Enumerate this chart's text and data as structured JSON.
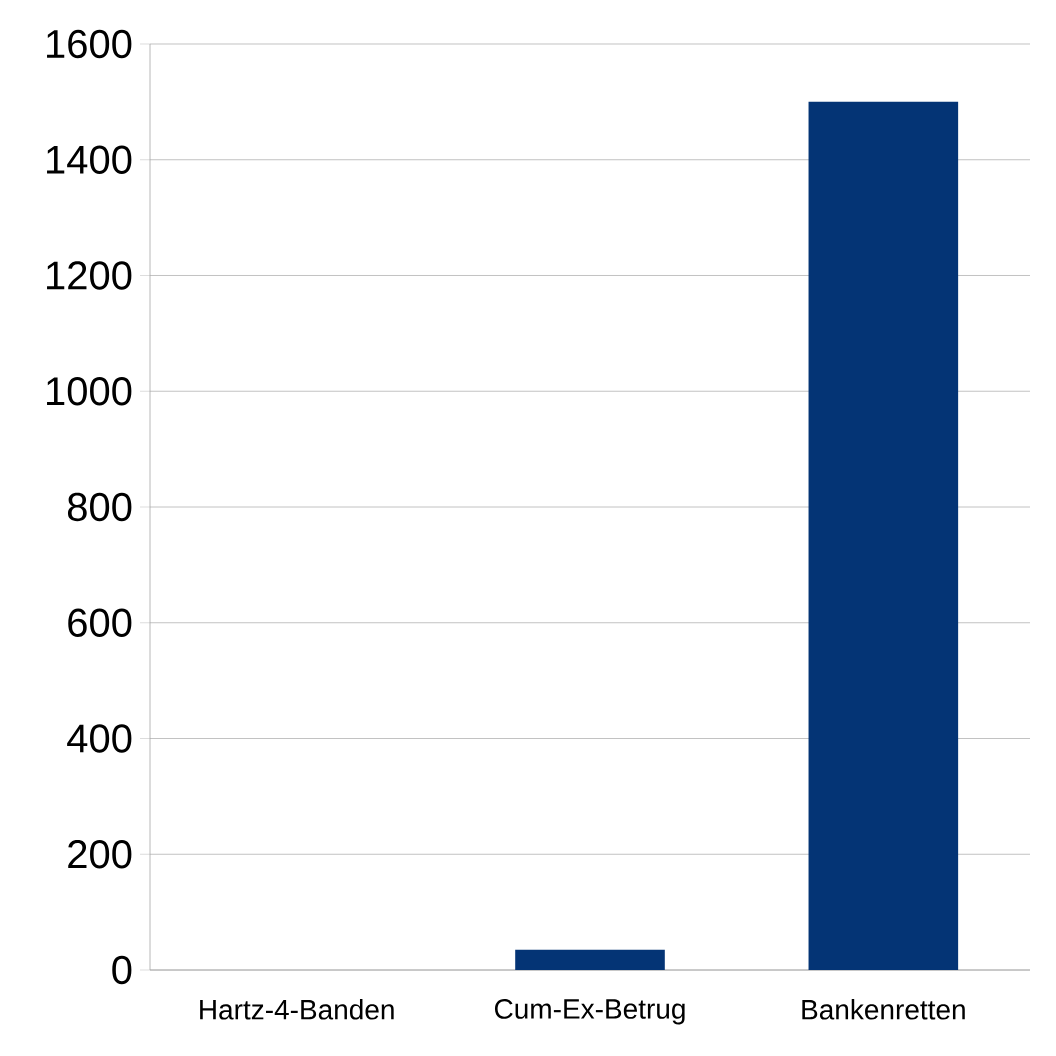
{
  "chart_data": {
    "type": "bar",
    "categories": [
      "Hartz-4-Banden",
      "Cum-Ex-Betrug",
      "Bankenretten"
    ],
    "values": [
      0,
      35,
      1500
    ],
    "color": "#043475",
    "ylim": [
      0,
      1600
    ],
    "yticks": [
      0,
      200,
      400,
      600,
      800,
      1000,
      1200,
      1400,
      1600
    ],
    "grid": "y"
  }
}
